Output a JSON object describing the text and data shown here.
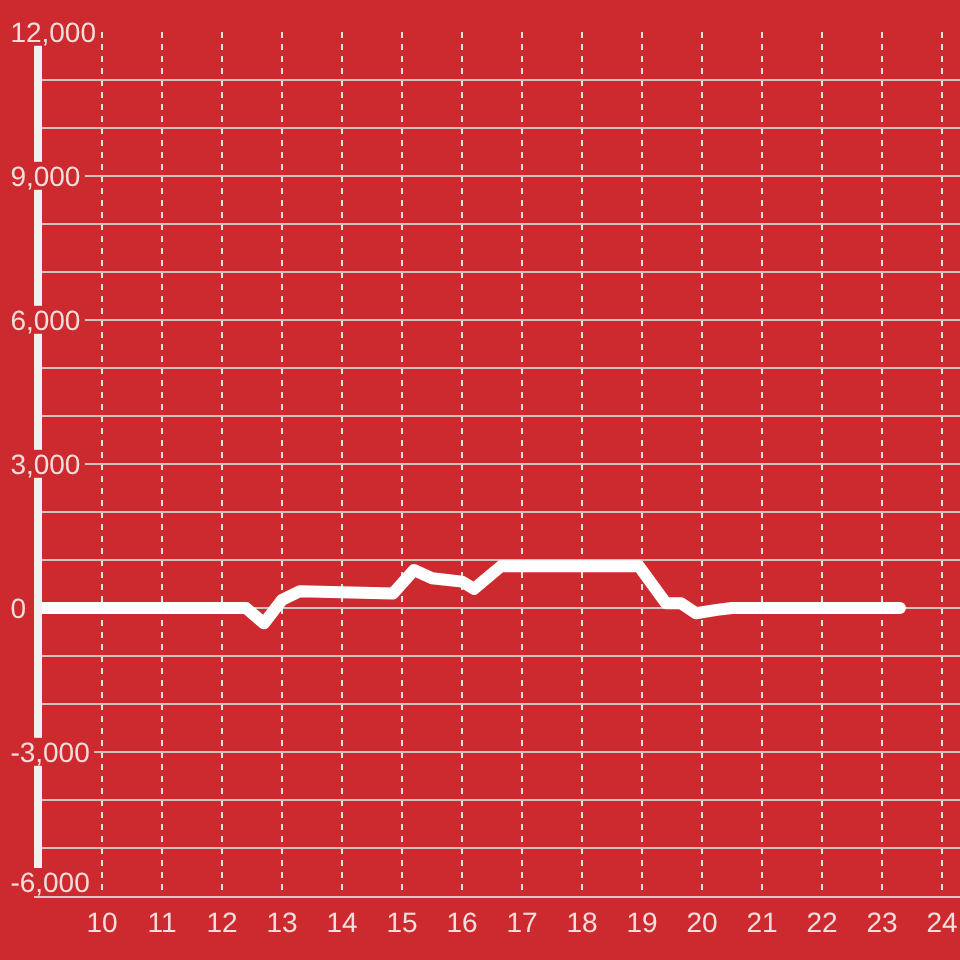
{
  "chart_data": {
    "type": "line",
    "x": [
      9,
      12.4,
      12.7,
      13.0,
      13.3,
      14.85,
      15.2,
      15.5,
      16.0,
      16.2,
      16.65,
      18.95,
      19.4,
      19.65,
      19.9,
      20.25,
      20.5,
      23.3
    ],
    "series": [
      {
        "color": "#ffffff",
        "values": [
          0,
          0,
          -320,
          170,
          350,
          300,
          790,
          620,
          550,
          400,
          870,
          870,
          100,
          100,
          -110,
          -40,
          0,
          0
        ]
      }
    ],
    "xlim": [
      9,
      24.3
    ],
    "xticks": [
      10,
      11,
      12,
      13,
      14,
      15,
      16,
      17,
      18,
      19,
      20,
      21,
      22,
      23,
      24
    ],
    "ylim": [
      -6000,
      12000
    ],
    "yticks": [
      {
        "value": -6000,
        "label": "-6,000"
      },
      {
        "value": -5000,
        "label": null
      },
      {
        "value": -4000,
        "label": null
      },
      {
        "value": -3000,
        "label": "-3,000"
      },
      {
        "value": -2000,
        "label": null
      },
      {
        "value": -1000,
        "label": null
      },
      0,
      {
        "value": 1000,
        "label": null
      },
      {
        "value": 2000,
        "label": null
      },
      {
        "value": 3000,
        "label": "3,000"
      },
      {
        "value": 4000,
        "label": null
      },
      {
        "value": 5000,
        "label": null
      },
      {
        "value": 6000,
        "label": "6,000"
      },
      {
        "value": 7000,
        "label": null
      },
      {
        "value": 8000,
        "label": null
      },
      {
        "value": 9000,
        "label": "9,000"
      },
      {
        "value": 10000,
        "label": null
      },
      {
        "value": 11000,
        "label": null
      },
      {
        "value": 12000,
        "label": "12,000"
      }
    ],
    "grid": true
  }
}
